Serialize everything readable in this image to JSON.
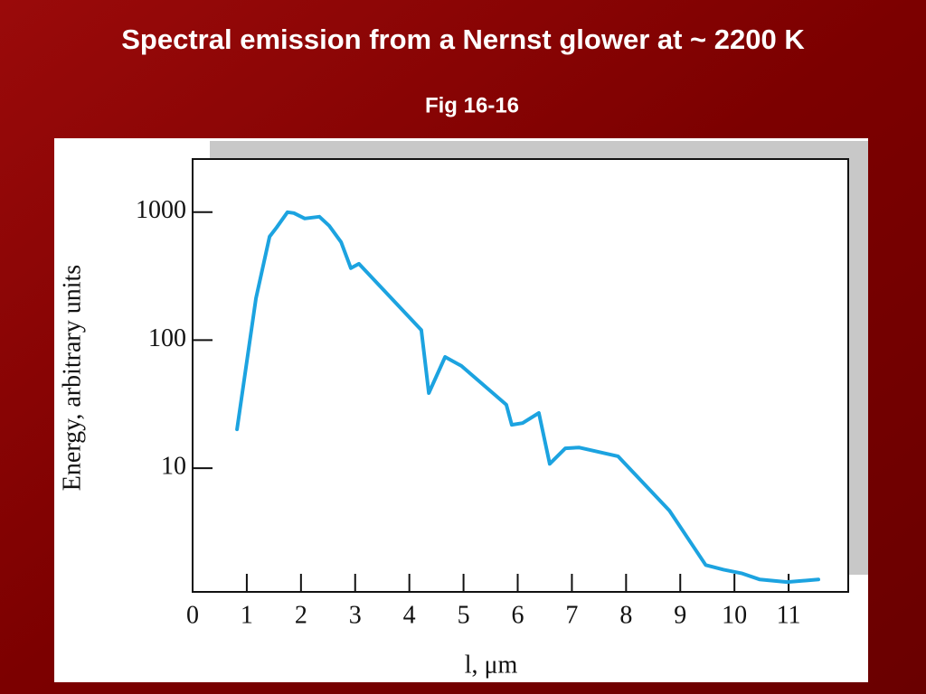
{
  "chart_data": {
    "type": "line",
    "title": "Spectral emission from a Nernst glower at ~ 2200 K",
    "subtitle": "Fig 16-16",
    "x_label": "l, μm",
    "y_label": "Energy, arbitrary units",
    "xlim": [
      0,
      12.1
    ],
    "xticks": [
      0,
      1,
      2,
      3,
      4,
      5,
      6,
      7,
      8,
      9,
      10,
      11
    ],
    "ylim": [
      1.08,
      2600
    ],
    "yticks": [
      10,
      100,
      1000
    ],
    "log_y": true,
    "x": [
      0.82,
      1.17,
      1.42,
      1.55,
      1.75,
      1.87,
      2.07,
      2.34,
      2.52,
      2.74,
      2.92,
      3.07,
      4.22,
      4.36,
      4.66,
      4.96,
      5.79,
      5.89,
      6.09,
      6.39,
      6.59,
      6.88,
      7.13,
      7.85,
      8.8,
      9.47,
      9.8,
      10.13,
      10.47,
      10.97,
      11.55
    ],
    "series": [
      {
        "color": "#1ca3e0",
        "values": [
          20.1,
          213,
          644,
          759,
          1000,
          984,
          892,
          922,
          784,
          584,
          365,
          395,
          120,
          38.6,
          74,
          63,
          31.3,
          21.8,
          22.5,
          27,
          10.8,
          14.3,
          14.5,
          12.4,
          4.66,
          1.75,
          1.61,
          1.51,
          1.35,
          1.29,
          1.35
        ]
      }
    ]
  }
}
